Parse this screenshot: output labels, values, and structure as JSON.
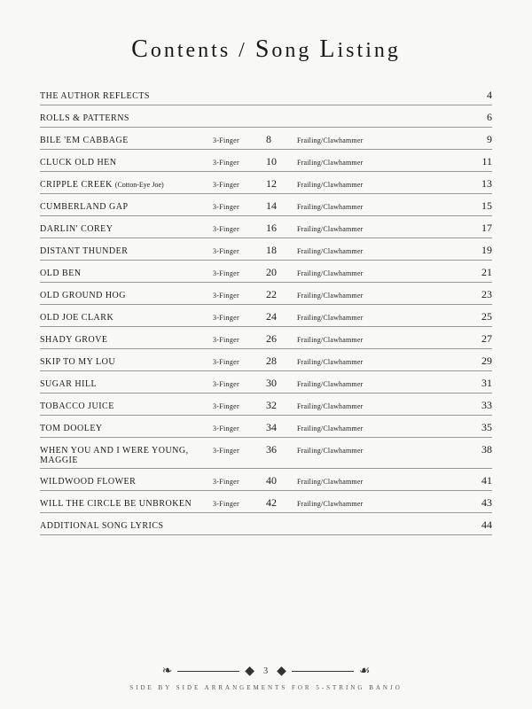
{
  "heading": "Contents / Song Listing",
  "page_number": "3",
  "footer_text": "Side By Side Arrangements for 5-String Banjo",
  "col_labels": {
    "a": "3-Finger",
    "b": "Frailing/Clawhammer"
  },
  "intro_rows": [
    {
      "title": "THE AUTHOR REFLECTS",
      "page": "4"
    },
    {
      "title": "ROLLS & PATTERNS",
      "page": "6"
    }
  ],
  "songs": [
    {
      "title": "BILE 'EM CABBAGE",
      "a": "8",
      "b": "9"
    },
    {
      "title": "CLUCK OLD HEN",
      "a": "10",
      "b": "11"
    },
    {
      "title": "CRIPPLE CREEK",
      "sub": "(Cotton-Eye Joe)",
      "a": "12",
      "b": "13"
    },
    {
      "title": "CUMBERLAND GAP",
      "a": "14",
      "b": "15"
    },
    {
      "title": "DARLIN' COREY",
      "a": "16",
      "b": "17"
    },
    {
      "title": "DISTANT THUNDER",
      "a": "18",
      "b": "19"
    },
    {
      "title": "OLD BEN",
      "a": "20",
      "b": "21"
    },
    {
      "title": "OLD GROUND HOG",
      "a": "22",
      "b": "23"
    },
    {
      "title": "OLD JOE CLARK",
      "a": "24",
      "b": "25"
    },
    {
      "title": "SHADY GROVE",
      "a": "26",
      "b": "27"
    },
    {
      "title": "SKIP TO MY LOU",
      "a": "28",
      "b": "29"
    },
    {
      "title": "SUGAR HILL",
      "a": "30",
      "b": "31"
    },
    {
      "title": "TOBACCO JUICE",
      "a": "32",
      "b": "33"
    },
    {
      "title": "TOM DOOLEY",
      "a": "34",
      "b": "35"
    },
    {
      "title": "WHEN YOU AND I WERE YOUNG, MAGGIE",
      "a": "36",
      "b": "38"
    },
    {
      "title": "WILDWOOD FLOWER",
      "a": "40",
      "b": "41"
    },
    {
      "title": "WILL THE CIRCLE BE UNBROKEN",
      "a": "42",
      "b": "43"
    }
  ],
  "outro_rows": [
    {
      "title": "ADDITIONAL SONG LYRICS",
      "page": "44"
    }
  ]
}
